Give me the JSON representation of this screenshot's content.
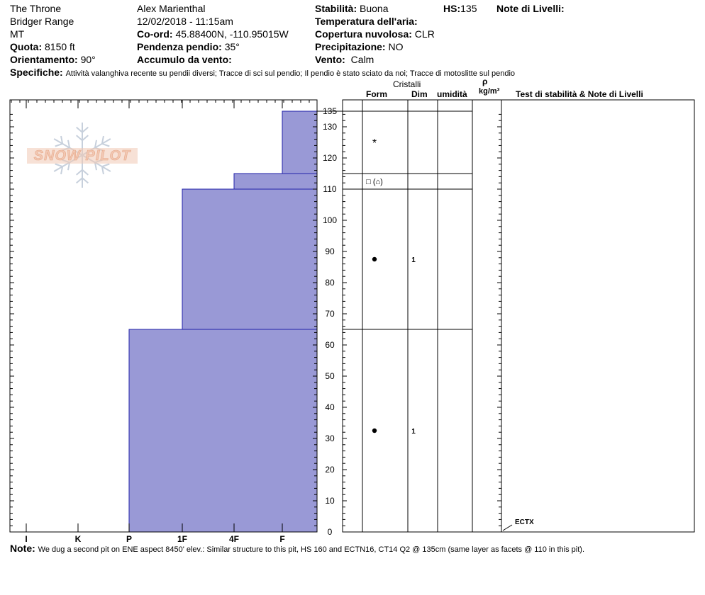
{
  "header": {
    "col1": {
      "name": "The Throne",
      "range": "Bridger Range",
      "state": "MT",
      "elevation_label": "Quota:",
      "elevation": "8150 ft",
      "aspect_label": "Orientamento:",
      "aspect": "90°"
    },
    "col2": {
      "observer": "Alex Marienthal",
      "datetime": "12/02/2018 - 11:15am",
      "coord_label": "Co-ord:",
      "coord": "45.88400N, -110.95015W",
      "slope_label": "Pendenza pendio:",
      "slope": "35°",
      "wind_load_label": "Accumulo da vento:",
      "wind_load": ""
    },
    "col3": {
      "stability_label": "Stabilità:",
      "stability": "Buona",
      "air_temp_label": "Temperatura dell'aria:",
      "air_temp": "",
      "sky_label": "Copertura nuvolosa:",
      "sky": "CLR",
      "precip_label": "Precipitazione:",
      "precip": "NO",
      "wind_label": "Vento:",
      "wind": "Calm"
    },
    "hs_label": "HS:",
    "hs": "135",
    "layer_notes_label": "Note di Livelli:",
    "specifics_label": "Specifiche:",
    "specifics": "Attività valanghiva recente su pendii diversi;  Tracce di sci sul pendio;  Il pendio è stato sciato da noi;  Tracce di motoslitte sul pendio"
  },
  "columns": {
    "crystals": "Cristalli",
    "form": "Form",
    "size": "Dim",
    "moisture": "umidità",
    "rho": "ρ",
    "density_unit": "kg/m³",
    "tests": "Test di stabilità & Note di Livelli"
  },
  "logo_text": "SNOW PILOT",
  "colors": {
    "hardness_fill": "#9999d6",
    "hardness_stroke": "#2222aa",
    "logo_text": "#f1c8b4",
    "logo_flake": "#c7d0dc"
  },
  "chart_data": {
    "type": "bar",
    "title": "",
    "xlabel": "",
    "ylabel": "",
    "hardness_ticks": [
      "I",
      "K",
      "P",
      "1F",
      "4F",
      "F"
    ],
    "depth_ticks": [
      "0",
      "10",
      "20",
      "30",
      "40",
      "50",
      "60",
      "70",
      "80",
      "90",
      "100",
      "110",
      "120",
      "130",
      "135"
    ],
    "ylim": [
      0,
      135
    ],
    "hardness_profile": [
      {
        "from_cm": 0,
        "to_cm": 65,
        "hardness": "P"
      },
      {
        "from_cm": 65,
        "to_cm": 110,
        "hardness": "1F"
      },
      {
        "from_cm": 110,
        "to_cm": 115,
        "hardness": "4F"
      },
      {
        "from_cm": 115,
        "to_cm": 135,
        "hardness": "F"
      }
    ],
    "layer_boundaries_cm": [
      135,
      115,
      110,
      65
    ],
    "layers": [
      {
        "depth_cm": 124.5,
        "form": "*",
        "size": ""
      },
      {
        "depth_cm": 112.5,
        "form": "□ (⌂)",
        "size": ""
      },
      {
        "depth_cm": 87.5,
        "form": "●",
        "size": "1"
      },
      {
        "depth_cm": 32.5,
        "form": "●",
        "size": "1"
      }
    ],
    "tests": [
      {
        "depth_cm": 2,
        "label": "ECTX"
      }
    ]
  },
  "note": {
    "label": "Note:",
    "text": "We dug a second pit on ENE aspect 8450' elev.: Similar structure to this pit, HS 160 and ECTN16, CT14 Q2 @ 135cm (same layer as facets @ 110 in this pit)."
  }
}
